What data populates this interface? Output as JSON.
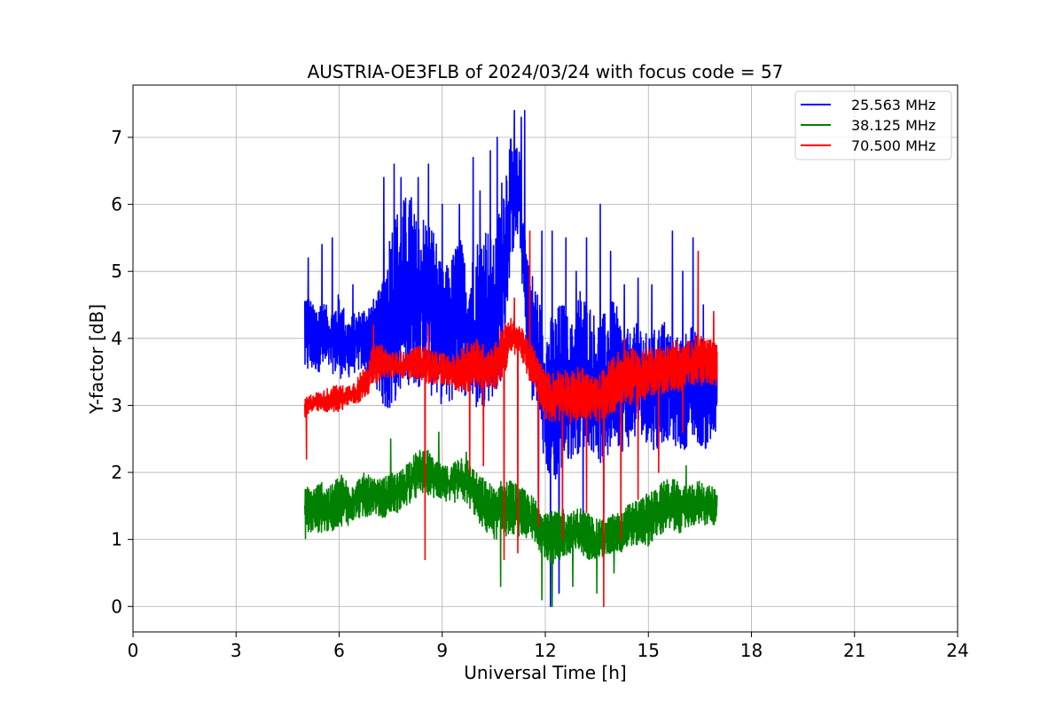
{
  "chart_data": {
    "type": "line",
    "title": "AUSTRIA-OE3FLB of 2024/03/24 with focus code = 57",
    "xlabel": "Universal Time [h]",
    "ylabel": "Y-factor [dB]",
    "xlim": [
      0,
      24
    ],
    "ylim": [
      -0.38,
      7.78
    ],
    "xticks": [
      0,
      3,
      6,
      9,
      12,
      15,
      18,
      21,
      24
    ],
    "yticks": [
      0,
      1,
      2,
      3,
      4,
      5,
      6,
      7
    ],
    "grid": true,
    "legend_position": "top-right",
    "series": [
      {
        "name": "25.563 MHz",
        "color": "#0000ff",
        "x": [
          5.0,
          5.25,
          5.5,
          5.75,
          6.0,
          6.25,
          6.5,
          6.75,
          7.0,
          7.25,
          7.5,
          7.75,
          8.0,
          8.25,
          8.5,
          8.75,
          9.0,
          9.25,
          9.5,
          9.75,
          10.0,
          10.25,
          10.5,
          10.75,
          11.0,
          11.25,
          11.5,
          11.75,
          12.0,
          12.25,
          12.5,
          12.75,
          13.0,
          13.25,
          13.5,
          13.75,
          14.0,
          14.25,
          14.5,
          14.75,
          15.0,
          15.25,
          15.5,
          15.75,
          16.0,
          16.25,
          16.5,
          16.75,
          17.0
        ],
        "low": [
          3.4,
          3.5,
          3.5,
          3.5,
          3.4,
          3.4,
          3.5,
          3.5,
          3.4,
          3.0,
          2.8,
          3.2,
          3.3,
          3.3,
          3.2,
          3.1,
          3.0,
          3.0,
          3.2,
          3.1,
          2.9,
          3.0,
          3.1,
          3.4,
          5.2,
          5.5,
          3.2,
          2.8,
          2.0,
          1.8,
          2.0,
          2.2,
          2.3,
          2.4,
          2.2,
          2.0,
          2.5,
          2.3,
          2.4,
          2.6,
          2.4,
          2.3,
          2.5,
          2.4,
          2.3,
          2.5,
          2.4,
          2.3,
          2.5
        ],
        "high": [
          4.8,
          4.5,
          4.6,
          4.4,
          4.7,
          4.3,
          4.4,
          4.5,
          4.6,
          4.8,
          5.8,
          6.0,
          6.2,
          5.8,
          5.9,
          5.7,
          5.0,
          5.2,
          5.6,
          5.0,
          5.5,
          5.8,
          5.4,
          6.5,
          7.0,
          6.8,
          5.2,
          4.8,
          4.2,
          4.4,
          4.6,
          4.2,
          4.8,
          4.6,
          4.3,
          4.4,
          4.6,
          4.2,
          4.1,
          4.3,
          4.0,
          4.2,
          4.3,
          4.0,
          4.1,
          4.2,
          4.0,
          4.1,
          3.9
        ],
        "spikes": [
          [
            5.1,
            5.2
          ],
          [
            5.5,
            5.4
          ],
          [
            5.8,
            5.5
          ],
          [
            6.4,
            4.8
          ],
          [
            7.3,
            6.4
          ],
          [
            7.6,
            6.6
          ],
          [
            7.8,
            6.4
          ],
          [
            8.1,
            6.1
          ],
          [
            8.3,
            6.4
          ],
          [
            8.6,
            6.6
          ],
          [
            9.0,
            6.0
          ],
          [
            9.5,
            6.0
          ],
          [
            9.9,
            6.7
          ],
          [
            10.1,
            6.2
          ],
          [
            10.4,
            6.8
          ],
          [
            10.6,
            7.0
          ],
          [
            11.1,
            7.4
          ],
          [
            11.3,
            7.3
          ],
          [
            11.4,
            7.4
          ],
          [
            11.9,
            5.6
          ],
          [
            12.2,
            5.6
          ],
          [
            12.6,
            5.5
          ],
          [
            12.9,
            5.0
          ],
          [
            13.2,
            5.5
          ],
          [
            13.6,
            6.0
          ],
          [
            13.9,
            5.3
          ],
          [
            14.3,
            4.8
          ],
          [
            14.7,
            4.9
          ],
          [
            15.1,
            4.8
          ],
          [
            15.4,
            4.2
          ],
          [
            15.7,
            5.6
          ],
          [
            16.0,
            5.0
          ],
          [
            16.3,
            5.5
          ],
          [
            16.6,
            4.5
          ]
        ],
        "dips": [
          [
            11.8,
            1.2
          ],
          [
            12.15,
            0.0
          ],
          [
            12.4,
            0.2
          ],
          [
            13.1,
            1.0
          ],
          [
            13.7,
            1.4
          ]
        ]
      },
      {
        "name": "38.125 MHz",
        "color": "#008000",
        "x": [
          5.0,
          5.25,
          5.5,
          5.75,
          6.0,
          6.25,
          6.5,
          6.75,
          7.0,
          7.25,
          7.5,
          7.75,
          8.0,
          8.25,
          8.5,
          8.75,
          9.0,
          9.25,
          9.5,
          9.75,
          10.0,
          10.25,
          10.5,
          10.75,
          11.0,
          11.25,
          11.5,
          11.75,
          12.0,
          12.25,
          12.5,
          12.75,
          13.0,
          13.25,
          13.5,
          13.75,
          14.0,
          14.25,
          14.5,
          14.75,
          15.0,
          15.25,
          15.5,
          15.75,
          16.0,
          16.25,
          16.5,
          16.75,
          17.0
        ],
        "low": [
          1.0,
          1.1,
          1.1,
          1.1,
          1.2,
          1.2,
          1.3,
          1.3,
          1.4,
          1.3,
          1.4,
          1.4,
          1.5,
          1.6,
          1.7,
          1.6,
          1.6,
          1.5,
          1.6,
          1.5,
          1.3,
          1.1,
          1.0,
          1.0,
          1.1,
          1.0,
          1.0,
          0.9,
          0.7,
          0.6,
          0.7,
          0.7,
          0.8,
          0.7,
          0.7,
          0.7,
          0.8,
          0.8,
          0.9,
          0.9,
          0.9,
          1.0,
          1.1,
          1.1,
          1.1,
          1.2,
          1.2,
          1.2,
          1.2
        ],
        "high": [
          1.8,
          1.8,
          1.9,
          1.8,
          2.0,
          1.9,
          1.9,
          2.0,
          1.9,
          1.9,
          2.0,
          2.0,
          2.2,
          2.3,
          2.4,
          2.2,
          2.1,
          2.1,
          2.3,
          2.2,
          2.0,
          1.9,
          1.8,
          1.9,
          1.9,
          1.8,
          1.7,
          1.6,
          1.5,
          1.4,
          1.5,
          1.4,
          1.5,
          1.4,
          1.3,
          1.3,
          1.4,
          1.4,
          1.6,
          1.6,
          1.7,
          1.8,
          1.9,
          1.9,
          1.8,
          1.8,
          1.9,
          1.8,
          1.8
        ],
        "spikes": [
          [
            7.5,
            2.5
          ],
          [
            8.9,
            2.6
          ],
          [
            9.7,
            2.3
          ],
          [
            16.1,
            2.1
          ]
        ],
        "dips": [
          [
            10.7,
            0.3
          ],
          [
            11.9,
            0.1
          ],
          [
            12.2,
            0.0
          ],
          [
            12.8,
            0.3
          ],
          [
            13.5,
            0.2
          ],
          [
            14.0,
            0.5
          ]
        ]
      },
      {
        "name": "70.500 MHz",
        "color": "#ff0000",
        "x": [
          5.0,
          5.25,
          5.5,
          5.75,
          6.0,
          6.25,
          6.5,
          6.75,
          7.0,
          7.25,
          7.5,
          7.75,
          8.0,
          8.25,
          8.5,
          8.75,
          9.0,
          9.25,
          9.5,
          9.75,
          10.0,
          10.25,
          10.5,
          10.75,
          11.0,
          11.25,
          11.5,
          11.75,
          12.0,
          12.25,
          12.5,
          12.75,
          13.0,
          13.25,
          13.5,
          13.75,
          14.0,
          14.25,
          14.5,
          14.75,
          15.0,
          15.25,
          15.5,
          15.75,
          16.0,
          16.25,
          16.5,
          16.75,
          17.0
        ],
        "low": [
          2.8,
          2.9,
          2.9,
          2.9,
          2.9,
          3.0,
          3.0,
          3.1,
          3.3,
          3.4,
          3.4,
          3.4,
          3.4,
          3.4,
          3.3,
          3.3,
          3.3,
          3.3,
          3.2,
          3.2,
          3.3,
          3.2,
          3.2,
          3.4,
          3.7,
          3.8,
          3.4,
          3.2,
          2.8,
          2.7,
          2.8,
          2.7,
          2.8,
          2.8,
          2.7,
          2.8,
          2.9,
          3.0,
          3.0,
          3.0,
          3.1,
          3.1,
          3.2,
          3.2,
          3.2,
          3.3,
          3.3,
          3.3,
          3.3
        ],
        "high": [
          3.1,
          3.2,
          3.2,
          3.3,
          3.3,
          3.3,
          3.4,
          3.6,
          3.9,
          3.9,
          3.8,
          3.8,
          3.8,
          3.9,
          3.9,
          3.8,
          3.8,
          3.7,
          3.8,
          4.0,
          4.0,
          3.9,
          3.9,
          4.2,
          4.3,
          4.2,
          4.0,
          3.8,
          3.5,
          3.5,
          3.6,
          3.5,
          3.6,
          3.5,
          3.4,
          3.6,
          3.8,
          3.8,
          3.9,
          3.8,
          3.9,
          3.9,
          3.9,
          4.0,
          3.9,
          4.0,
          4.1,
          4.0,
          3.9
        ],
        "spikes": [
          [
            7.0,
            4.2
          ],
          [
            8.6,
            4.2
          ],
          [
            10.2,
            4.6
          ],
          [
            11.1,
            4.6
          ],
          [
            11.55,
            5.6
          ],
          [
            14.3,
            4.0
          ],
          [
            16.45,
            5.3
          ],
          [
            16.9,
            4.4
          ]
        ],
        "dips": [
          [
            5.05,
            2.2
          ],
          [
            8.5,
            0.7
          ],
          [
            9.8,
            2.0
          ],
          [
            10.2,
            2.1
          ],
          [
            10.8,
            0.7
          ],
          [
            11.2,
            0.8
          ],
          [
            11.8,
            1.2
          ],
          [
            12.5,
            1.0
          ],
          [
            13.2,
            1.4
          ],
          [
            13.7,
            0.0
          ],
          [
            14.2,
            1.0
          ],
          [
            14.7,
            1.6
          ],
          [
            15.3,
            2.0
          ],
          [
            16.0,
            2.6
          ]
        ]
      }
    ]
  }
}
